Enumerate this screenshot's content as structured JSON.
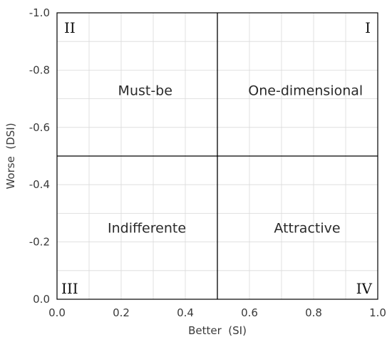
{
  "chart_data": {
    "type": "scatter",
    "xlabel": "Better  (SI)",
    "ylabel": "Worse  (DSI)",
    "xlim": [
      0.0,
      1.0
    ],
    "ylim": [
      0.0,
      -1.0
    ],
    "x_ticks": [
      0.0,
      0.2,
      0.4,
      0.6,
      0.8,
      1.0
    ],
    "y_ticks": [
      0.0,
      -0.2,
      -0.4,
      -0.6,
      -0.8,
      -1.0
    ],
    "x_tick_labels": [
      "0.0",
      "0.2",
      "0.4",
      "0.6",
      "0.8",
      "1.0"
    ],
    "y_tick_labels": [
      "0.0",
      "-0.2",
      "-0.4",
      "-0.6",
      "-0.8",
      "-1.0"
    ],
    "grid": true,
    "divider_lines": {
      "x": 0.5,
      "y": -0.5
    },
    "quadrant_labels": [
      {
        "text": "Must-be",
        "x": 0.275,
        "y": -0.73
      },
      {
        "text": "One-dimensional",
        "x": 0.775,
        "y": -0.73
      },
      {
        "text": "Indifferente",
        "x": 0.28,
        "y": -0.25
      },
      {
        "text": "Attractive",
        "x": 0.78,
        "y": -0.25
      }
    ],
    "quadrant_numerals": [
      {
        "text": "II",
        "corner": "top-left"
      },
      {
        "text": "I",
        "corner": "top-right"
      },
      {
        "text": "III",
        "corner": "bottom-left"
      },
      {
        "text": "IV",
        "corner": "bottom-right"
      }
    ],
    "colors": {
      "grid": "#d9d9d9",
      "axis": "#000000",
      "text": "#3a3a3a"
    }
  }
}
